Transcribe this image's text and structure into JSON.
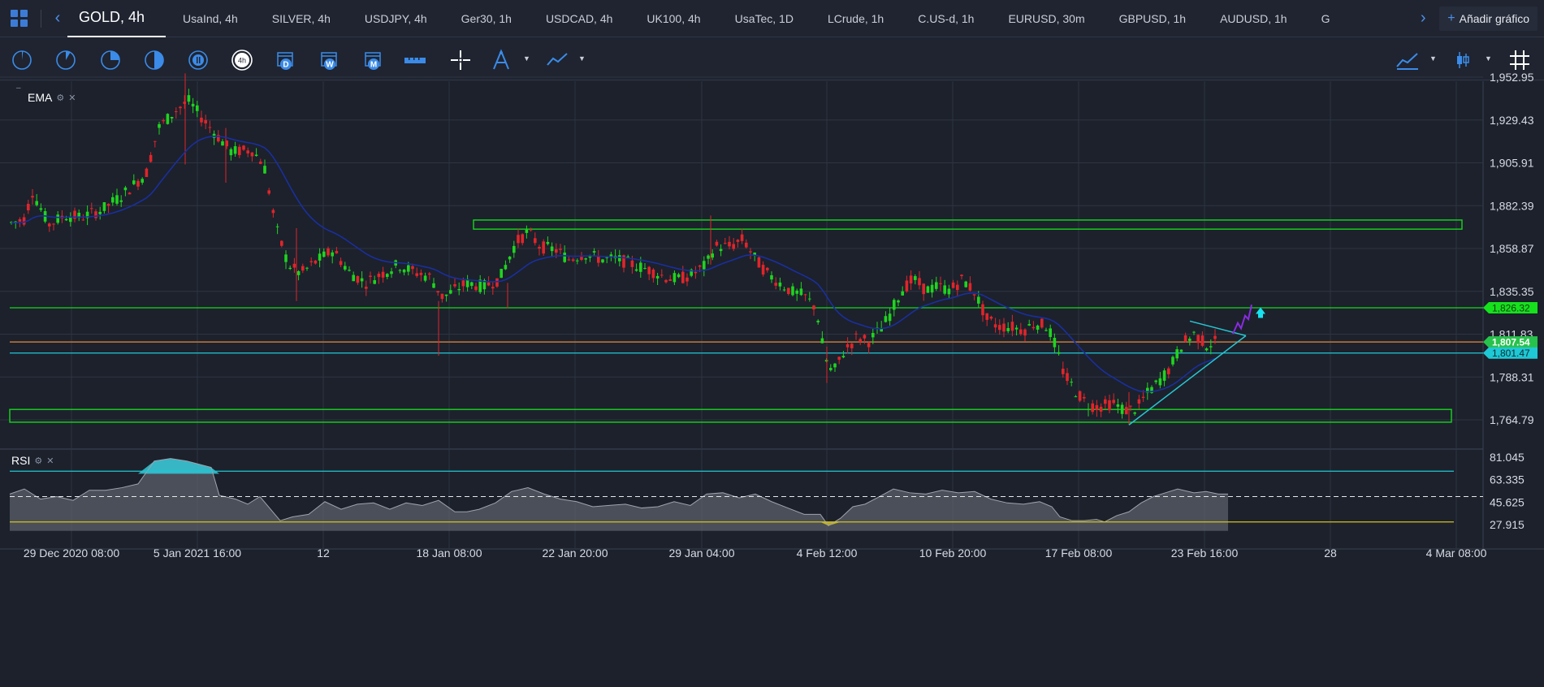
{
  "tabs": {
    "active": "GOLD, 4h",
    "items": [
      "UsaInd, 4h",
      "SILVER, 4h",
      "USDJPY, 4h",
      "Ger30, 1h",
      "USDCAD, 4h",
      "UK100, 4h",
      "UsaTec, 1D",
      "LCrude, 1h",
      "C.US-d, 1h",
      "EURUSD, 30m",
      "GBPUSD, 1h",
      "AUDUSD, 1h",
      "G"
    ],
    "add_chart": "Añadir gráfico"
  },
  "toolbar": {
    "timeframe_badge": "4h",
    "calendar_labels": [
      "D",
      "W",
      "M"
    ]
  },
  "chart": {
    "ema_label": "EMA",
    "rsi_label": "RSI",
    "price_ticks": [
      "1,952.95",
      "1,929.43",
      "1,905.91",
      "1,882.39",
      "1,858.87",
      "1,835.35",
      "1,811.83",
      "1,788.31",
      "1,764.79"
    ],
    "price_tags": [
      {
        "text": "1,826.32",
        "color": "#16e11d"
      },
      {
        "text": "1,807.54",
        "color": "#27c24b"
      },
      {
        "text": "1,801.47",
        "color": "#1ec8d4"
      }
    ],
    "rsi_ticks": [
      "81.045",
      "63.335",
      "45.625",
      "27.915"
    ],
    "time_labels": [
      "29 Dec 2020 08:00",
      "5 Jan 2021 16:00",
      "12",
      "18 Jan 08:00",
      "22 Jan 20:00",
      "29 Jan 04:00",
      "4 Feb 12:00",
      "10 Feb 20:00",
      "17 Feb 08:00",
      "23 Feb 16:00",
      "28",
      "4 Mar 08:00"
    ]
  },
  "colors": {
    "bull": "#1fd41f",
    "bear": "#e0252a",
    "ema": "#1a2f9e",
    "support": "#17d61c",
    "triangle": "#27c7d2",
    "orange_line": "#c47a3a",
    "cyan_line": "#1ec8d4",
    "rsi_upper": "#1ec8d4",
    "rsi_lower": "#d4c21e"
  },
  "icons": [
    "apps-grid-icon",
    "chevron-left-icon",
    "chevron-right-icon",
    "plus-icon",
    "clock-icon",
    "calendar-icon",
    "ruler-icon",
    "crosshair-icon",
    "pen-tool-icon",
    "line-tool-icon",
    "chart-type-icon",
    "candles-icon",
    "grid-icon",
    "gear-icon",
    "close-icon",
    "arrow-up-icon"
  ]
}
